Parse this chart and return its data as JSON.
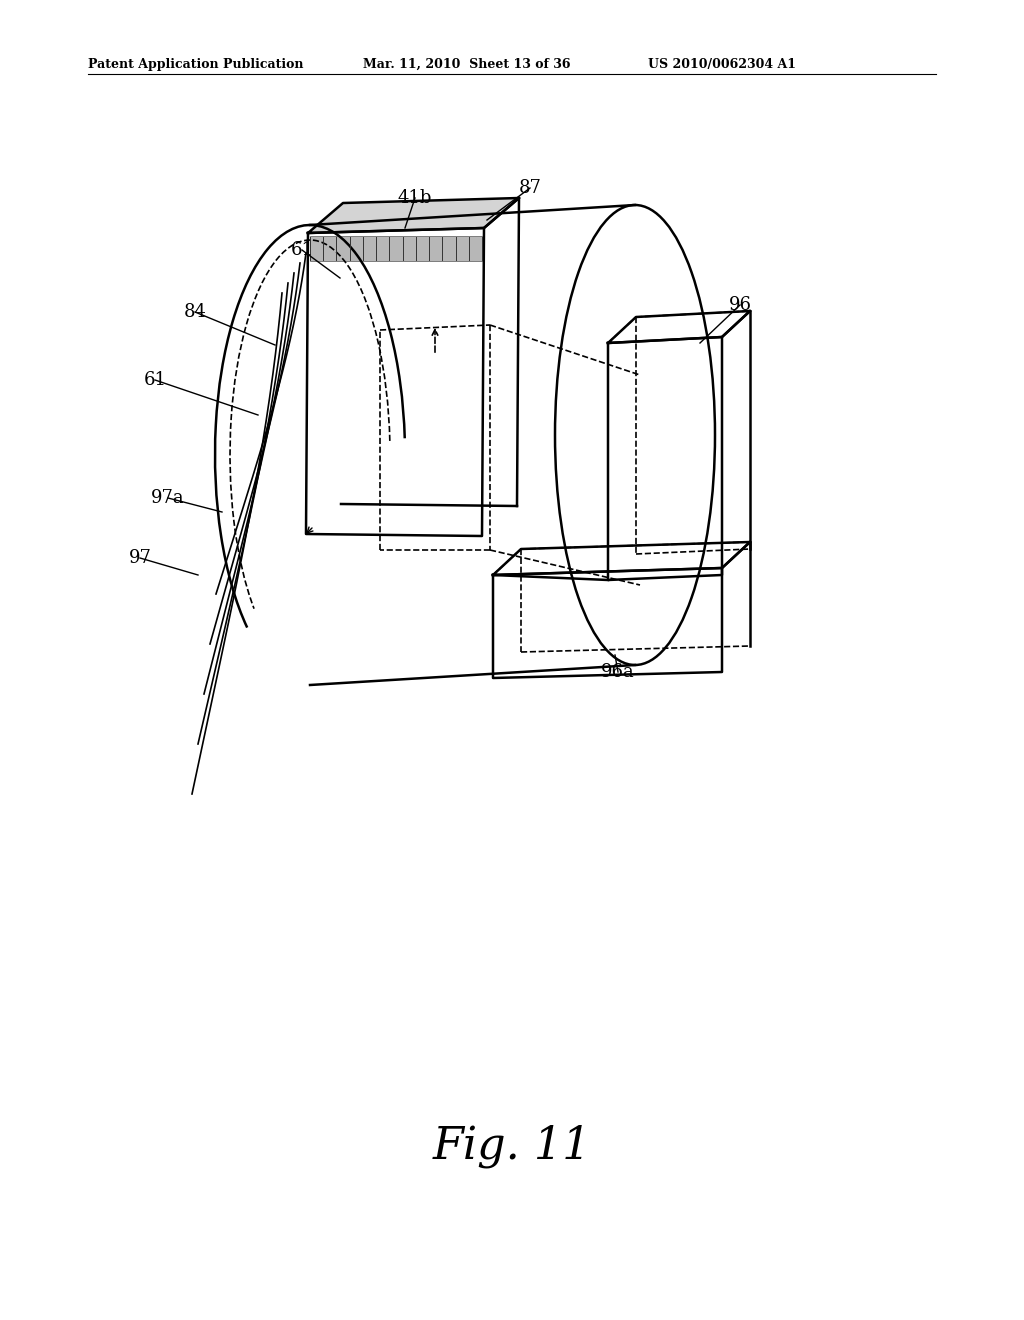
{
  "header_left": "Patent Application Publication",
  "header_mid": "Mar. 11, 2010  Sheet 13 of 36",
  "header_right": "US 2010/0062304 A1",
  "bg_color": "#ffffff",
  "line_color": "#000000"
}
